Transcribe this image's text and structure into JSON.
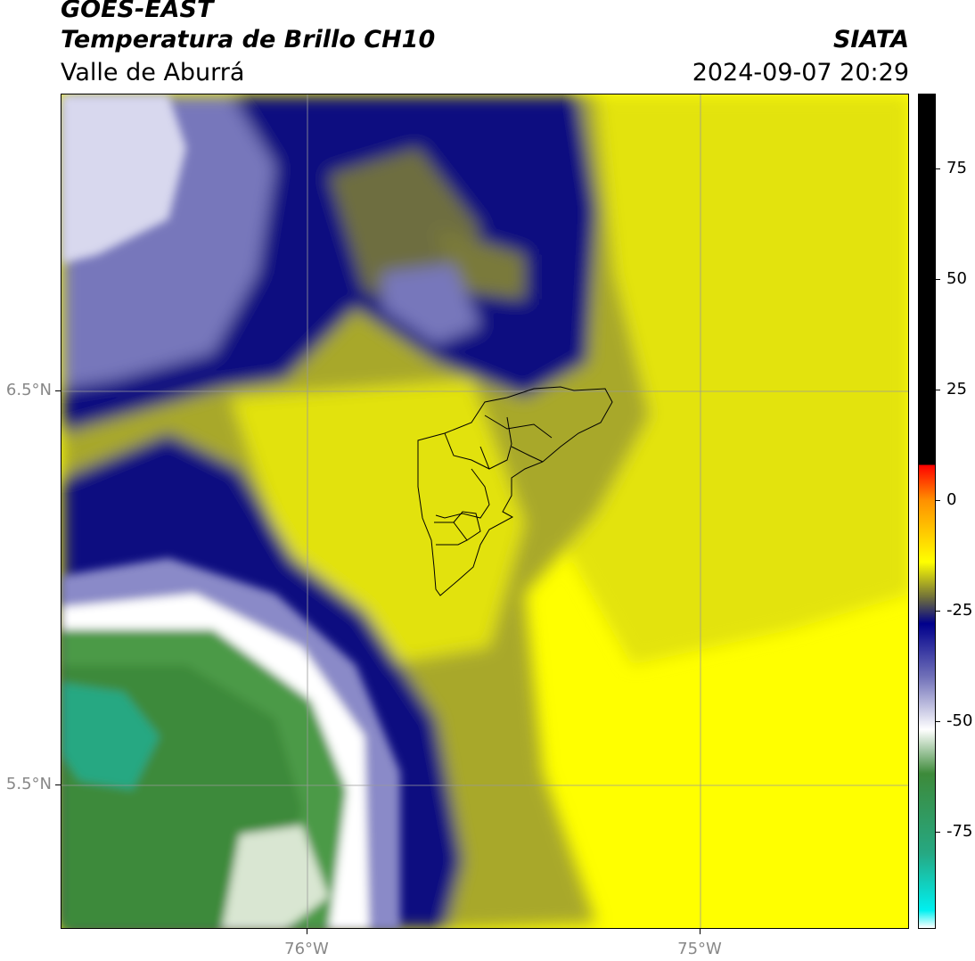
{
  "header": {
    "title_line1": "GOES-EAST",
    "title_line2": "Temperatura de Brillo CH10",
    "subtitle": "Valle de Aburrá",
    "brand": "SIATA",
    "datetime": "2024-09-07 20:29"
  },
  "map": {
    "lat_ticks": [
      {
        "label": "6.5°N",
        "value": 6.5
      },
      {
        "label": "5.5°N",
        "value": 5.5
      }
    ],
    "lon_ticks": [
      {
        "label": "76°W",
        "value": -76
      },
      {
        "label": "75°W",
        "value": -75
      }
    ],
    "gridlines": true,
    "colors": {
      "yellow": "#ffff00",
      "olive": "#8f8f3a",
      "navy": "#0b0b7a",
      "lavender": "#8a8ac8",
      "white": "#ffffff",
      "green": "#3d8a3a",
      "teal": "#26a882"
    }
  },
  "colorbar": {
    "ticks": [
      {
        "label": "75",
        "value": 75
      },
      {
        "label": "50",
        "value": 50
      },
      {
        "label": "25",
        "value": 25
      },
      {
        "label": "0",
        "value": 0
      },
      {
        "label": "-25",
        "value": -25
      },
      {
        "label": "-50",
        "value": -50
      },
      {
        "label": "-75",
        "value": -75
      }
    ],
    "range": [
      -97,
      92
    ],
    "stops": [
      {
        "value": -97,
        "color": "#ffffff"
      },
      {
        "value": -93,
        "color": "#00f0f0"
      },
      {
        "value": -80,
        "color": "#26a882"
      },
      {
        "value": -62,
        "color": "#3d8a3a"
      },
      {
        "value": -52,
        "color": "#ffffff"
      },
      {
        "value": -40,
        "color": "#7070b8"
      },
      {
        "value": -28,
        "color": "#00008c"
      },
      {
        "value": -22,
        "color": "#70703a"
      },
      {
        "value": -14,
        "color": "#ffff00"
      },
      {
        "value": 0,
        "color": "#ff9000"
      },
      {
        "value": 8,
        "color": "#ff0000"
      },
      {
        "value": 8.01,
        "color": "#000000"
      },
      {
        "value": 92,
        "color": "#000000"
      }
    ]
  }
}
